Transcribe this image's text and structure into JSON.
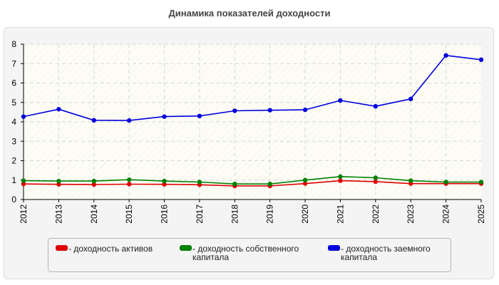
{
  "title": "Динамика показателей доходности",
  "chart_data": {
    "type": "line",
    "title": "Динамика показателей доходности",
    "categories": [
      "2012",
      "2013",
      "2014",
      "2015",
      "2016",
      "2017",
      "2018",
      "2019",
      "2020",
      "2021",
      "2022",
      "2023",
      "2024",
      "2025"
    ],
    "ylim": [
      0,
      8
    ],
    "yticks": [
      0,
      1,
      2,
      3,
      4,
      5,
      6,
      7,
      8
    ],
    "grid": true,
    "legend_position": "bottom",
    "series": [
      {
        "name": "- доходность активов",
        "color": "#dd0000",
        "values": [
          0.8,
          0.78,
          0.77,
          0.79,
          0.78,
          0.76,
          0.7,
          0.7,
          0.82,
          0.97,
          0.92,
          0.82,
          0.82,
          0.82
        ]
      },
      {
        "name": "- доходность собственного капитала",
        "color": "#008000",
        "values": [
          0.97,
          0.95,
          0.95,
          1.02,
          0.95,
          0.9,
          0.8,
          0.8,
          1.0,
          1.18,
          1.12,
          0.97,
          0.9,
          0.9
        ]
      },
      {
        "name": "- доходность заемного капитала",
        "color": "#0000dd",
        "values": [
          4.27,
          4.65,
          4.08,
          4.07,
          4.27,
          4.3,
          4.57,
          4.6,
          4.62,
          5.1,
          4.8,
          5.18,
          7.42,
          7.2
        ]
      }
    ]
  }
}
